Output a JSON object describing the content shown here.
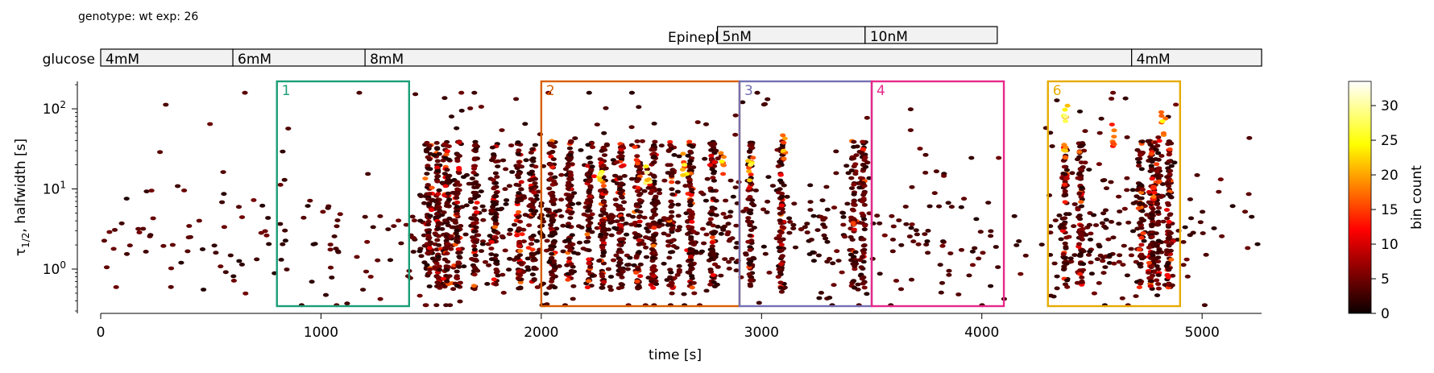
{
  "header": {
    "info": "genotype: wt  exp: 26"
  },
  "stimuli": {
    "epinephrine": {
      "label": "Epinephrine",
      "segments": [
        {
          "start": 2800,
          "end": 3470,
          "label": "5nM"
        },
        {
          "start": 3470,
          "end": 4070,
          "label": "10nM"
        }
      ]
    },
    "glucose": {
      "label": "glucose",
      "segments": [
        {
          "start": 0,
          "end": 600,
          "label": "4mM"
        },
        {
          "start": 600,
          "end": 1200,
          "label": "6mM"
        },
        {
          "start": 1200,
          "end": 4680,
          "label": "8mM"
        },
        {
          "start": 4680,
          "end": 5270,
          "label": "4mM"
        }
      ]
    }
  },
  "chart_data": {
    "type": "heatmap",
    "subtype": "hexbin",
    "xlabel": "time [s]",
    "ylabel_main": "τ",
    "ylabel_sub": "1/2",
    "ylabel_rest": ", halfwidth [s]",
    "xlim": [
      0,
      5270
    ],
    "ylim": [
      0.28,
      220
    ],
    "yscale": "log",
    "xticks": [
      0,
      1000,
      2000,
      3000,
      4000,
      5000
    ],
    "xtick_labels": [
      "0",
      "1000",
      "2000",
      "3000",
      "4000",
      "5000"
    ],
    "yticks": [
      1,
      10,
      100
    ],
    "ytick_label_base": "10",
    "ytick_label_exps": [
      "0",
      "1",
      "2"
    ],
    "colorbar": {
      "label": "bin count",
      "min": 0,
      "max": 33.5,
      "ticks": [
        0,
        5,
        10,
        15,
        20,
        25,
        30
      ],
      "tick_labels": [
        "0",
        "5",
        "10",
        "15",
        "20",
        "25",
        "30"
      ],
      "colormap": "hot"
    },
    "regions": [
      {
        "label": "1",
        "start": 800,
        "end": 1400,
        "color": "#1b9e77"
      },
      {
        "label": "2",
        "start": 2000,
        "end": 2900,
        "color": "#d95f02"
      },
      {
        "label": "3",
        "start": 2900,
        "end": 3500,
        "color": "#7570b3"
      },
      {
        "label": "4",
        "start": 3500,
        "end": 4100,
        "color": "#e7298a"
      },
      {
        "label": "6",
        "start": 4300,
        "end": 4900,
        "color": "#e6ab02"
      }
    ],
    "activity_profile": [
      {
        "start": 0,
        "end": 800,
        "density": 0.22
      },
      {
        "start": 800,
        "end": 1400,
        "density": 0.25
      },
      {
        "start": 1400,
        "end": 2000,
        "density": 0.9
      },
      {
        "start": 2000,
        "end": 2900,
        "density": 1.0
      },
      {
        "start": 2900,
        "end": 3500,
        "density": 0.55
      },
      {
        "start": 3500,
        "end": 4100,
        "density": 0.35
      },
      {
        "start": 4100,
        "end": 4300,
        "density": 0.12
      },
      {
        "start": 4300,
        "end": 4900,
        "density": 0.75
      },
      {
        "start": 4900,
        "end": 5270,
        "density": 0.2
      }
    ],
    "dense_columns": [
      1490,
      1530,
      1570,
      1620,
      1700,
      1790,
      1900,
      1960,
      2050,
      2130,
      2220,
      2280,
      2360,
      2440,
      2510,
      2590,
      2680,
      2780,
      2950,
      3090,
      3420,
      3460,
      4380,
      4450,
      4720,
      4770,
      4800,
      4850
    ],
    "hotspots": [
      {
        "x": 2270,
        "y": 15,
        "count": 28
      },
      {
        "x": 2480,
        "y": 16,
        "count": 30
      },
      {
        "x": 2650,
        "y": 20,
        "count": 26
      },
      {
        "x": 2820,
        "y": 22,
        "count": 24
      },
      {
        "x": 2950,
        "y": 20,
        "count": 27
      },
      {
        "x": 3100,
        "y": 30,
        "count": 22
      },
      {
        "x": 4380,
        "y": 80,
        "count": 29
      },
      {
        "x": 4380,
        "y": 30,
        "count": 22
      },
      {
        "x": 4820,
        "y": 70,
        "count": 25
      },
      {
        "x": 4600,
        "y": 45,
        "count": 18
      },
      {
        "x": 4780,
        "y": 8,
        "count": 18
      }
    ]
  }
}
